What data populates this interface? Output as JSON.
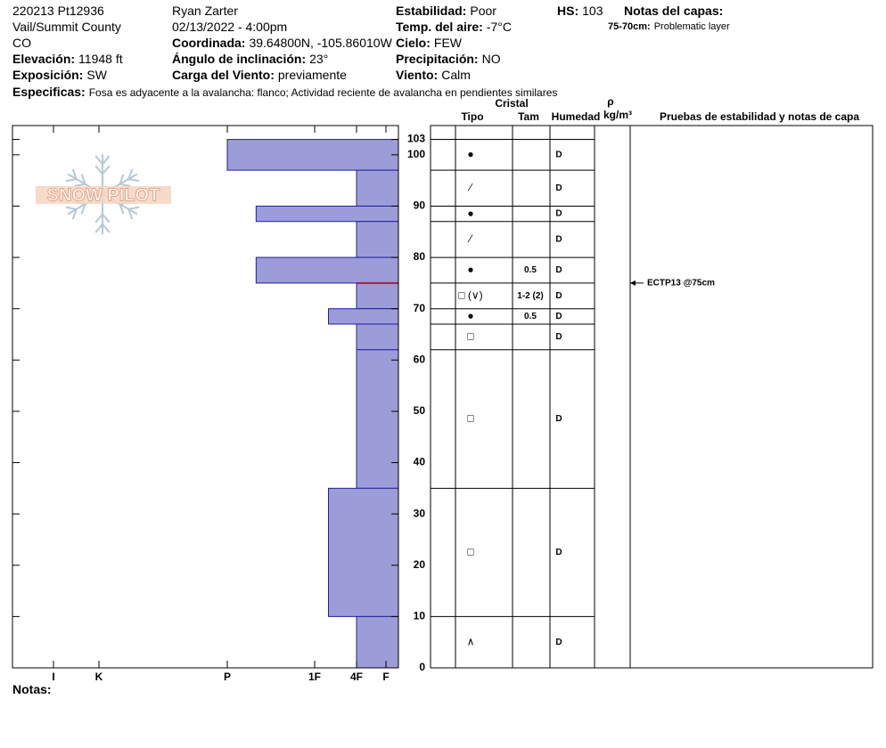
{
  "header": {
    "id": "220213 Pt12936",
    "location": "Vail/Summit County",
    "state": "CO",
    "observer": "Ryan Zarter",
    "datetime": "02/13/2022 - 4:00pm",
    "fields": [
      {
        "label": "Elevación:",
        "value": "11948 ft"
      },
      {
        "label": "Exposición:",
        "value": "SW"
      },
      {
        "label": "Coordinada:",
        "value": "39.64800N, -105.86010W"
      },
      {
        "label": "Ángulo de inclinación:",
        "value": "23°"
      },
      {
        "label": "Carga del Viento:",
        "value": "previamente"
      },
      {
        "label": "Estabilidad:",
        "value": "Poor"
      },
      {
        "label": "Temp. del aire:",
        "value": "-7°C"
      },
      {
        "label": "Cielo:",
        "value": "FEW"
      },
      {
        "label": "Precipitación:",
        "value": "NO"
      },
      {
        "label": "Viento:",
        "value": "Calm"
      },
      {
        "label": "HS:",
        "value": "103"
      }
    ],
    "specifics": {
      "label": "Especificas:",
      "value": "Fosa es adyacente a la avalancha: flanco;  Actividad reciente de avalancha en pendientes similares"
    },
    "layer_notes": {
      "title": "Notas del capas:",
      "notes": [
        {
          "label": "75-70cm:",
          "value": "Problematic layer"
        }
      ]
    }
  },
  "logo": "SNOW PILOT",
  "notes_label": "Notas:",
  "chart_data": {
    "type": "snow-profile",
    "ylim": [
      0,
      105.7
    ],
    "yticks": [
      0,
      10,
      20,
      30,
      40,
      50,
      60,
      70,
      80,
      90,
      100,
      103
    ],
    "xticks": [
      {
        "value": 6,
        "label": "I"
      },
      {
        "value": 5,
        "label": "K"
      },
      {
        "value": 4,
        "label": "P"
      },
      {
        "value": 3,
        "label": "1F"
      },
      {
        "value": 2,
        "label": "4F"
      },
      {
        "value": 1,
        "label": "F"
      }
    ],
    "color": "#9c9cd8",
    "columns": {
      "crystal": "Cristal",
      "type": "Tipo",
      "size": "Tam",
      "moisture": "Humedad",
      "density": "ρ",
      "density_unit": "kg/m³",
      "tests": "Pruebas de estabilidad y notas de capa"
    },
    "layers": [
      {
        "top": 103,
        "bottom": 97,
        "hardness": 4,
        "grain": "●",
        "moisture": "D"
      },
      {
        "top": 97,
        "bottom": 90,
        "hardness": 2,
        "grain": "⁄",
        "moisture": "D"
      },
      {
        "top": 90,
        "bottom": 87,
        "hardness": 3.67,
        "grain": "●",
        "moisture": "D"
      },
      {
        "top": 87,
        "bottom": 80,
        "hardness": 2,
        "grain": "⁄",
        "moisture": "D"
      },
      {
        "top": 80,
        "bottom": 75,
        "hardness": 3.67,
        "grain": "●",
        "size": "0.5",
        "moisture": "D"
      },
      {
        "top": 75,
        "bottom": 70,
        "hardness": 2,
        "grain": "□ (∨)",
        "size": "1-2 (2)",
        "moisture": "D"
      },
      {
        "top": 70,
        "bottom": 67,
        "hardness": 2.67,
        "grain": "●",
        "size": "0.5",
        "moisture": "D"
      },
      {
        "top": 67,
        "bottom": 62,
        "hardness": 2,
        "grain": "□",
        "moisture": "D"
      },
      {
        "top": 62,
        "bottom": 35,
        "hardness": 2,
        "grain": "□",
        "moisture": "D"
      },
      {
        "top": 35,
        "bottom": 10,
        "hardness": 2.67,
        "grain": "□",
        "moisture": "D"
      },
      {
        "top": 10,
        "bottom": 0,
        "hardness": 2,
        "grain": "∧",
        "moisture": "D"
      }
    ],
    "stability_tests": [
      {
        "label": "ECTP13 @75cm",
        "depth": 75,
        "color": "#a02040"
      }
    ]
  }
}
